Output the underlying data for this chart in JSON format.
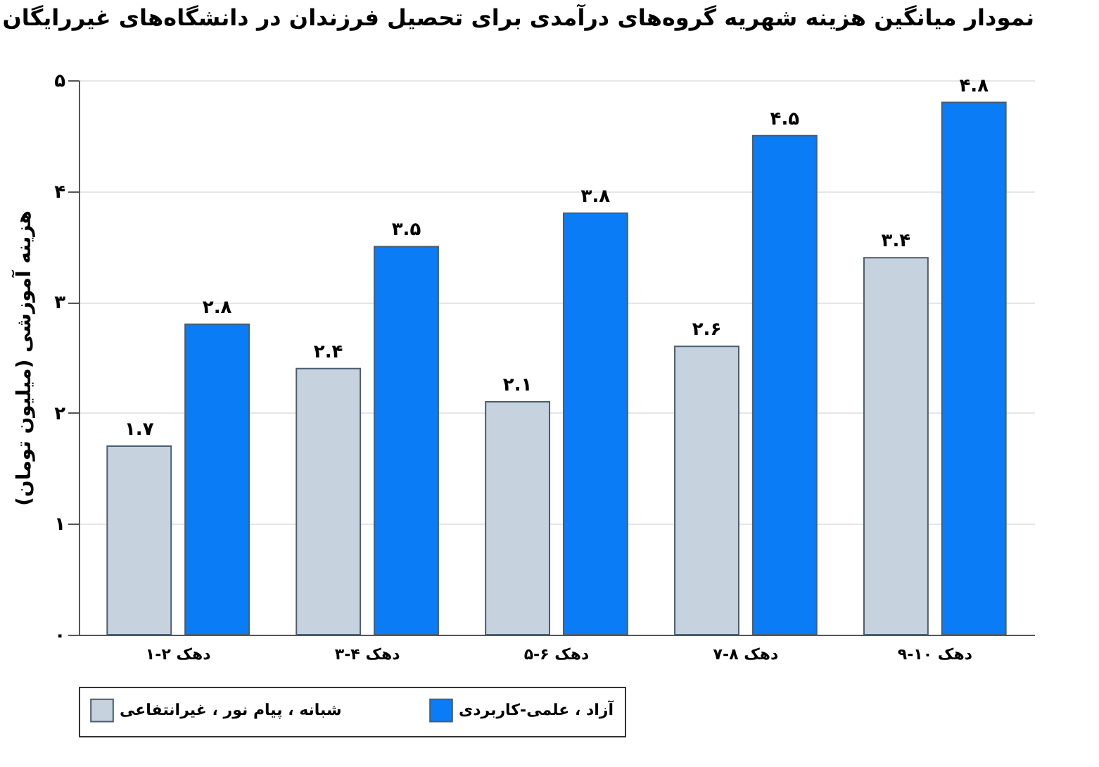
{
  "chart_data": {
    "type": "bar",
    "title": "نمودار میانگین هزینه شهریه گروه‌های درآمدی برای تحصیل فرزندان در دانشگاه‌های غیررایگان",
    "ylabel": "هزینه آموزشی (میلیون تومان)",
    "categories": [
      "دهک ۲-۱",
      "دهک ۴-۳",
      "دهک ۶-۵",
      "دهک ۸-۷",
      "دهک ۱۰-۹"
    ],
    "series": [
      {
        "name": "شبانه ، پیام نور ، غیرانتفاعی",
        "color": "#c6d3df",
        "values": [
          1.7,
          2.4,
          2.1,
          2.6,
          3.4
        ],
        "value_labels": [
          "۱.۷",
          "۲.۴",
          "۲.۱",
          "۲.۶",
          "۳.۴"
        ]
      },
      {
        "name": "آزاد ، علمی-کاربردی",
        "color": "#0a7cf5",
        "values": [
          2.8,
          3.5,
          3.8,
          4.5,
          4.8
        ],
        "value_labels": [
          "۲.۸",
          "۳.۵",
          "۳.۸",
          "۴.۵",
          "۴.۸"
        ]
      }
    ],
    "ylim": [
      0,
      5
    ],
    "yticks": [
      {
        "value": 0,
        "label": "۰"
      },
      {
        "value": 1,
        "label": "۱"
      },
      {
        "value": 2,
        "label": "۲"
      },
      {
        "value": 3,
        "label": "۳"
      },
      {
        "value": 4,
        "label": "۴"
      },
      {
        "value": 5,
        "label": "۵"
      }
    ],
    "grid": "y",
    "legend": "bottom"
  }
}
